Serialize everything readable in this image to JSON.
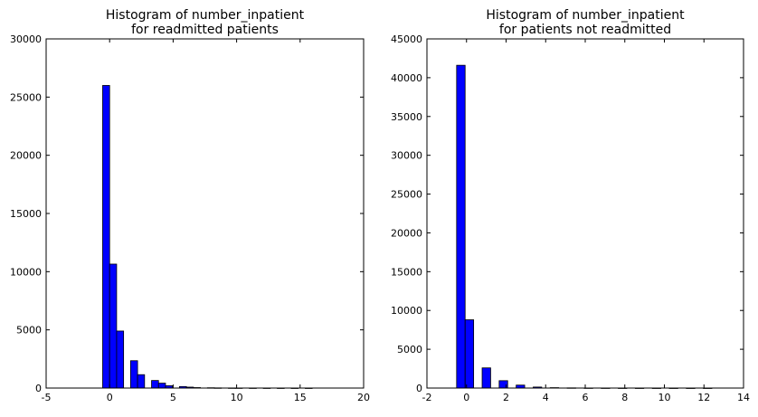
{
  "chart_data": [
    {
      "type": "bar",
      "title_lines": [
        "Histogram of number_inpatient",
        "for readmitted patients"
      ],
      "xlim": [
        -5,
        20
      ],
      "ylim": [
        0,
        30000
      ],
      "xticks": [
        -5,
        0,
        5,
        10,
        15,
        20
      ],
      "yticks": [
        0,
        5000,
        10000,
        15000,
        20000,
        25000,
        30000
      ],
      "bar_color": "#0000ff",
      "bins": [
        {
          "x0": -0.55,
          "x1": 0.0,
          "count": 26000
        },
        {
          "x0": 0.0,
          "x1": 0.55,
          "count": 10650
        },
        {
          "x0": 0.55,
          "x1": 1.1,
          "count": 4900
        },
        {
          "x0": 1.65,
          "x1": 2.2,
          "count": 2350
        },
        {
          "x0": 2.2,
          "x1": 2.75,
          "count": 1150
        },
        {
          "x0": 3.3,
          "x1": 3.85,
          "count": 650
        },
        {
          "x0": 3.85,
          "x1": 4.4,
          "count": 420
        },
        {
          "x0": 4.4,
          "x1": 4.95,
          "count": 200
        },
        {
          "x0": 5.5,
          "x1": 6.05,
          "count": 130
        },
        {
          "x0": 6.05,
          "x1": 6.6,
          "count": 80
        },
        {
          "x0": 6.6,
          "x1": 7.15,
          "count": 40
        },
        {
          "x0": 7.7,
          "x1": 8.25,
          "count": 25
        },
        {
          "x0": 8.25,
          "x1": 8.8,
          "count": 15
        },
        {
          "x0": 9.35,
          "x1": 9.9,
          "count": 10
        },
        {
          "x0": 9.9,
          "x1": 10.45,
          "count": 8
        },
        {
          "x0": 11.0,
          "x1": 11.55,
          "count": 5
        },
        {
          "x0": 12.1,
          "x1": 12.65,
          "count": 4
        },
        {
          "x0": 13.2,
          "x1": 13.75,
          "count": 3
        },
        {
          "x0": 14.3,
          "x1": 14.85,
          "count": 2
        },
        {
          "x0": 15.4,
          "x1": 15.95,
          "count": 2
        }
      ]
    },
    {
      "type": "bar",
      "title_lines": [
        "Histogram of number_inpatient",
        "for patients not readmitted"
      ],
      "xlim": [
        -2,
        14
      ],
      "ylim": [
        0,
        45000
      ],
      "xticks": [
        -2,
        0,
        2,
        4,
        6,
        8,
        10,
        12,
        14
      ],
      "yticks": [
        0,
        5000,
        10000,
        15000,
        20000,
        25000,
        30000,
        35000,
        40000,
        45000
      ],
      "bar_color": "#0000ff",
      "bins": [
        {
          "x0": -0.5,
          "x1": -0.07,
          "count": 41600
        },
        {
          "x0": -0.07,
          "x1": 0.36,
          "count": 8800
        },
        {
          "x0": 0.79,
          "x1": 1.22,
          "count": 2600
        },
        {
          "x0": 1.65,
          "x1": 2.08,
          "count": 950
        },
        {
          "x0": 2.51,
          "x1": 2.94,
          "count": 380
        },
        {
          "x0": 3.37,
          "x1": 3.8,
          "count": 130
        },
        {
          "x0": 4.23,
          "x1": 4.66,
          "count": 50
        },
        {
          "x0": 5.09,
          "x1": 5.52,
          "count": 25
        },
        {
          "x0": 5.95,
          "x1": 6.38,
          "count": 12
        },
        {
          "x0": 6.81,
          "x1": 7.24,
          "count": 8
        },
        {
          "x0": 7.67,
          "x1": 8.1,
          "count": 5
        },
        {
          "x0": 8.53,
          "x1": 8.96,
          "count": 3
        },
        {
          "x0": 9.39,
          "x1": 9.82,
          "count": 2
        },
        {
          "x0": 10.25,
          "x1": 10.68,
          "count": 2
        },
        {
          "x0": 11.11,
          "x1": 11.54,
          "count": 1
        },
        {
          "x0": 11.97,
          "x1": 12.4,
          "count": 1
        }
      ]
    }
  ]
}
